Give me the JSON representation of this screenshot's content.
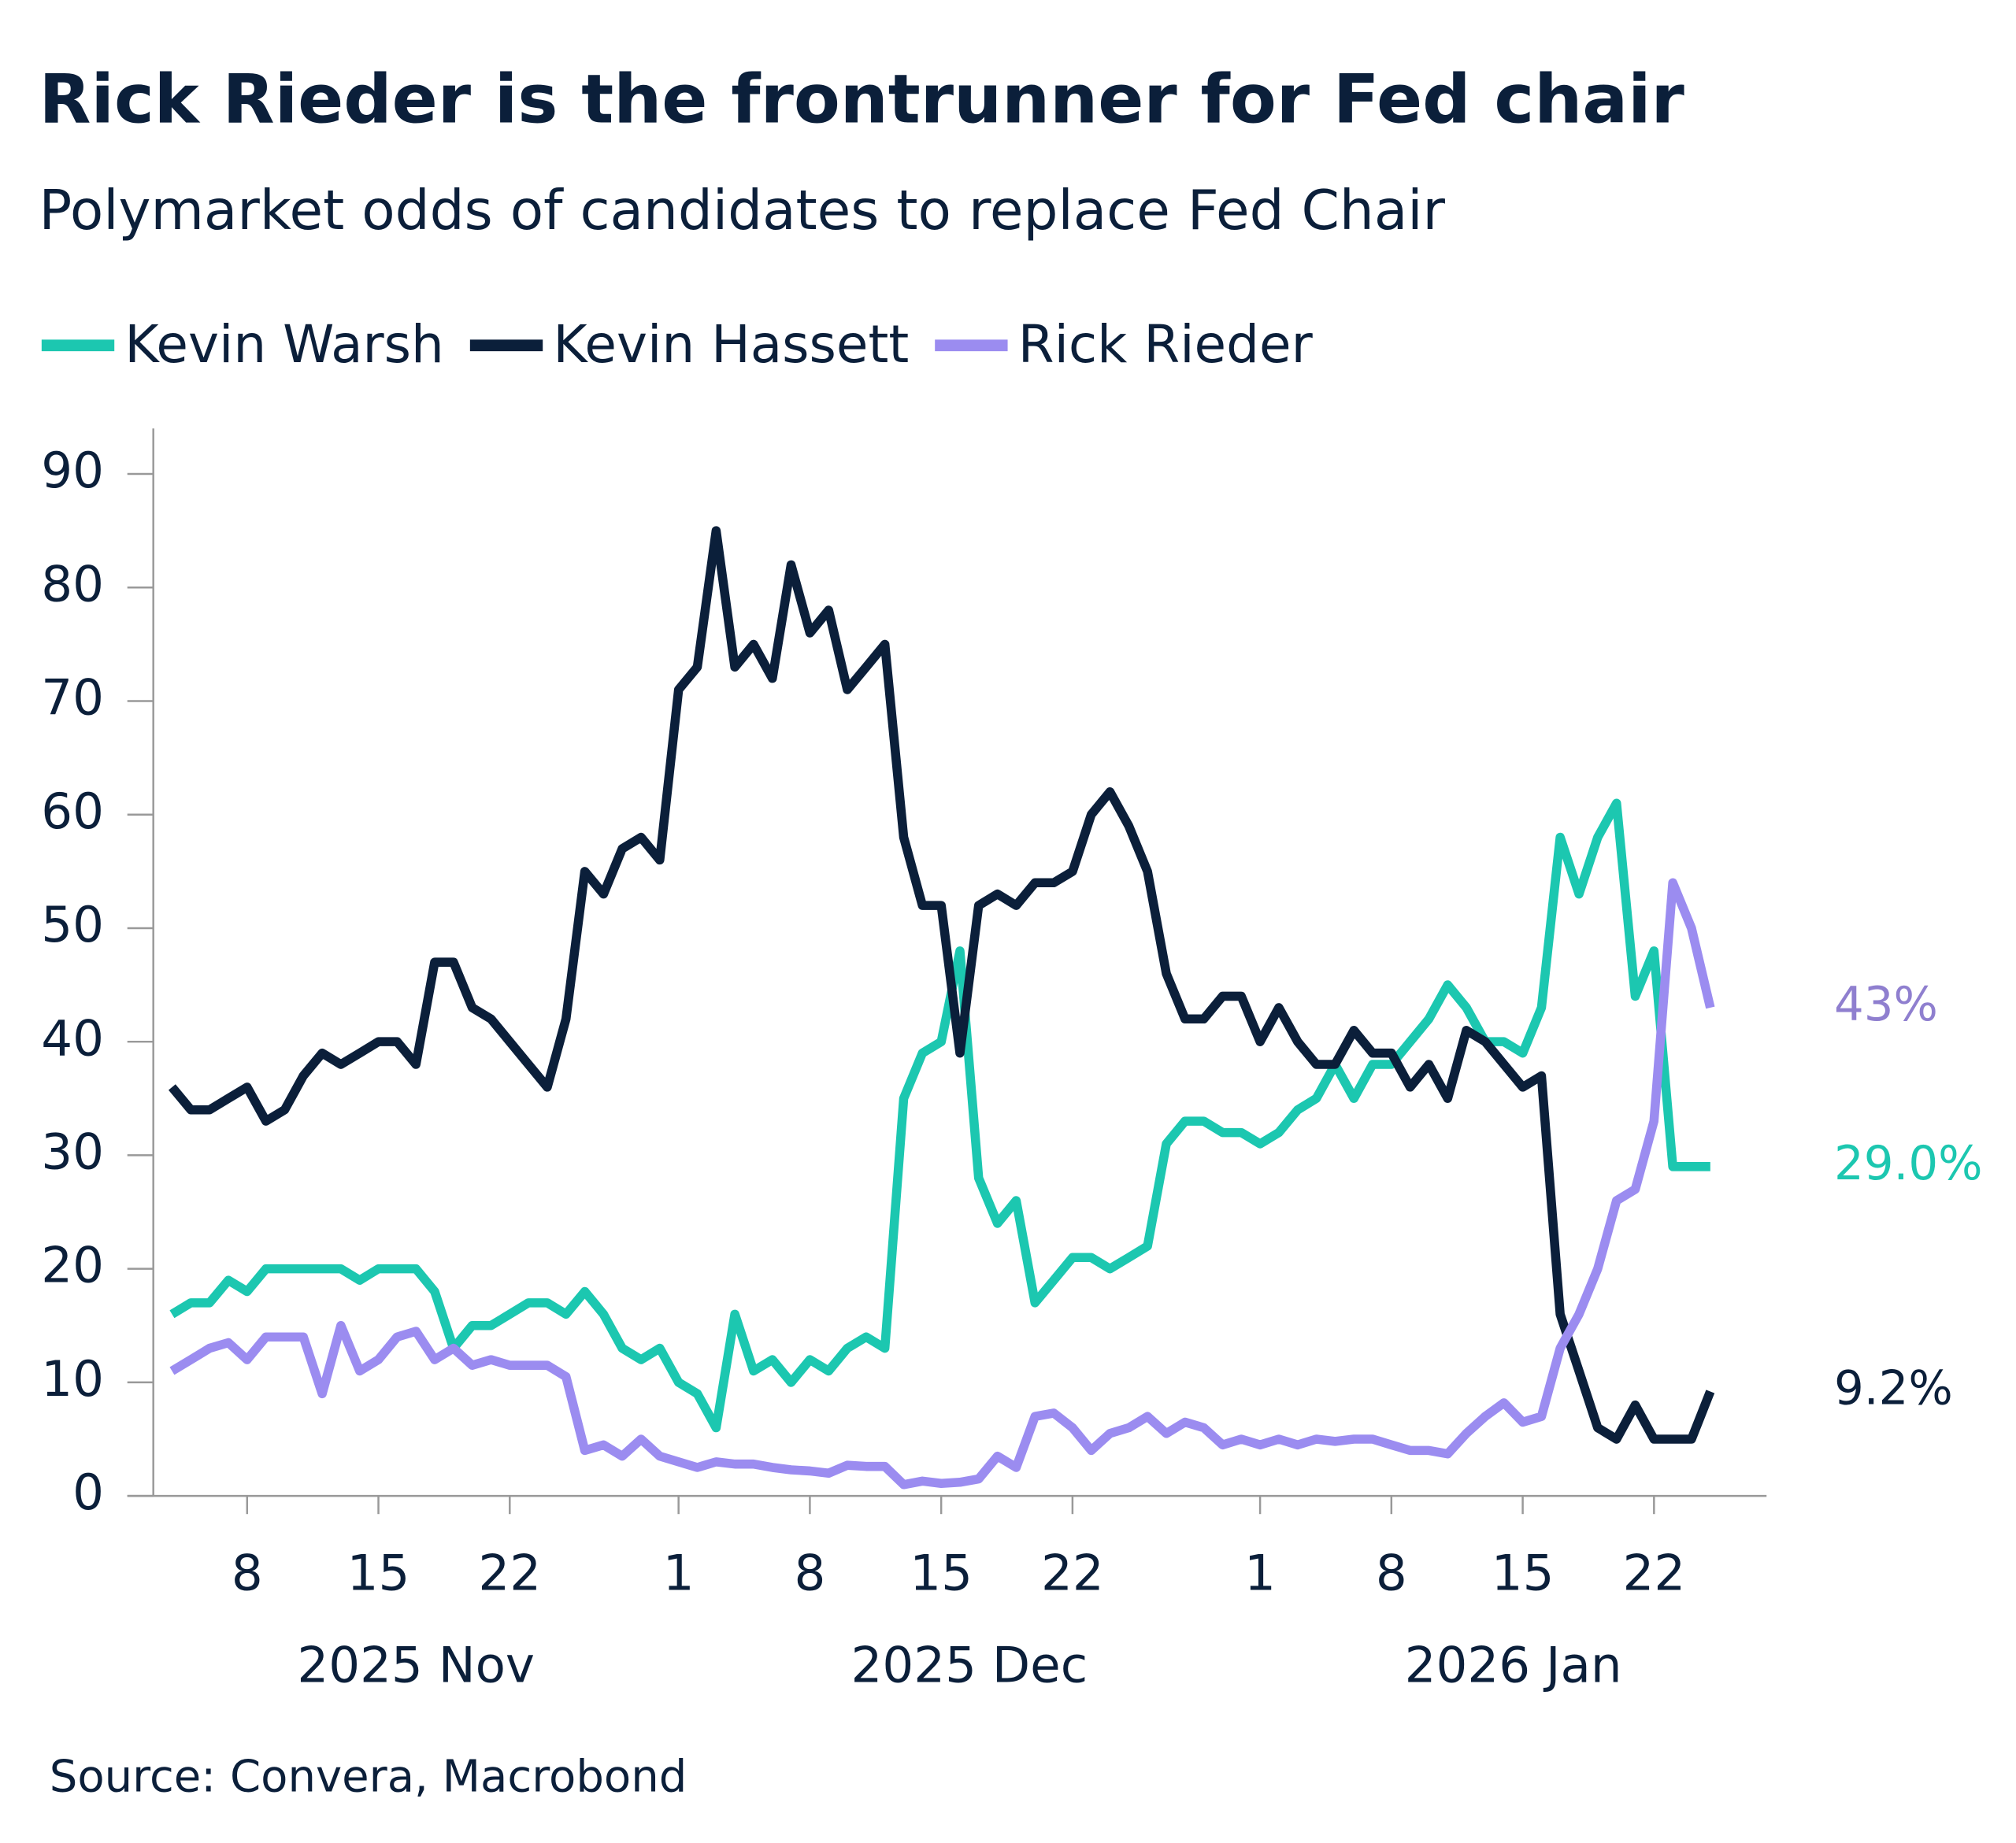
{
  "chart_data": {
    "type": "line",
    "title": "Rick Rieder is the frontrunner for Fed chair",
    "subtitle": "Polymarket odds of candidates to replace Fed Chair",
    "source": "Source: Convera, Macrobond",
    "x": [
      "2025-11-04",
      "2025-11-05",
      "2025-11-06",
      "2025-11-07",
      "2025-11-08",
      "2025-11-09",
      "2025-11-10",
      "2025-11-11",
      "2025-11-12",
      "2025-11-13",
      "2025-11-14",
      "2025-11-15",
      "2025-11-16",
      "2025-11-17",
      "2025-11-18",
      "2025-11-19",
      "2025-11-20",
      "2025-11-21",
      "2025-11-22",
      "2025-11-23",
      "2025-11-24",
      "2025-11-25",
      "2025-11-26",
      "2025-11-27",
      "2025-11-28",
      "2025-11-29",
      "2025-11-30",
      "2025-12-01",
      "2025-12-02",
      "2025-12-03",
      "2025-12-04",
      "2025-12-05",
      "2025-12-06",
      "2025-12-07",
      "2025-12-08",
      "2025-12-09",
      "2025-12-10",
      "2025-12-11",
      "2025-12-12",
      "2025-12-13",
      "2025-12-14",
      "2025-12-15",
      "2025-12-16",
      "2025-12-17",
      "2025-12-18",
      "2025-12-19",
      "2025-12-20",
      "2025-12-21",
      "2025-12-22",
      "2025-12-23",
      "2025-12-24",
      "2025-12-25",
      "2025-12-26",
      "2025-12-27",
      "2025-12-28",
      "2025-12-29",
      "2025-12-30",
      "2025-12-31",
      "2026-01-01",
      "2026-01-02",
      "2026-01-03",
      "2026-01-04",
      "2026-01-05",
      "2026-01-06",
      "2026-01-07",
      "2026-01-08",
      "2026-01-09",
      "2026-01-10",
      "2026-01-11",
      "2026-01-12",
      "2026-01-13",
      "2026-01-14",
      "2026-01-15",
      "2026-01-16",
      "2026-01-17",
      "2026-01-18",
      "2026-01-19",
      "2026-01-20",
      "2026-01-21",
      "2026-01-22",
      "2026-01-23",
      "2026-01-24",
      "2026-01-25"
    ],
    "series": [
      {
        "name": "Kevin Warsh",
        "color": "#1cc7b0",
        "last_label": "29.0%",
        "values": [
          16,
          17,
          17,
          19,
          18,
          20,
          20,
          20,
          20,
          20,
          19,
          20,
          20,
          20,
          18,
          13,
          15,
          15,
          16,
          17,
          17,
          16,
          18,
          16,
          13,
          12,
          13,
          10,
          9,
          6,
          16,
          11,
          12,
          10,
          12,
          11,
          13,
          14,
          13,
          35,
          39,
          40,
          48,
          28,
          24,
          26,
          17,
          19,
          21,
          21,
          20,
          21,
          22,
          31,
          33,
          33,
          32,
          32,
          31,
          32,
          34,
          35,
          38,
          35,
          38,
          38,
          40,
          42,
          45,
          43,
          40,
          40,
          39,
          43,
          58,
          53,
          58,
          61,
          44,
          48,
          29,
          29,
          29
        ]
      },
      {
        "name": "Kevin Hassett",
        "color": "#0b1f3a",
        "last_label": "9.2%",
        "values": [
          36,
          34,
          34,
          35,
          36,
          33,
          34,
          37,
          39,
          38,
          39,
          40,
          40,
          38,
          47,
          47,
          43,
          42,
          40,
          38,
          36,
          42,
          55,
          53,
          57,
          58,
          56,
          71,
          73,
          85,
          73,
          75,
          72,
          82,
          76,
          78,
          71,
          73,
          75,
          58,
          52,
          52,
          39,
          52,
          53,
          52,
          54,
          54,
          55,
          60,
          62,
          59,
          55,
          46,
          42,
          42,
          44,
          44,
          40,
          43,
          40,
          38,
          38,
          41,
          39,
          39,
          36,
          38,
          35,
          41,
          40,
          38,
          36,
          37,
          16,
          11,
          6,
          5,
          8,
          5,
          5,
          5,
          9.2
        ]
      },
      {
        "name": "Rick Rieder",
        "color": "#9b8cf0",
        "last_label": "43%",
        "values": [
          11,
          12,
          13,
          13.5,
          12,
          14,
          14,
          14,
          9,
          15,
          11,
          12,
          14,
          14.5,
          12,
          13,
          11.5,
          12,
          11.5,
          11.5,
          11.5,
          10.5,
          4,
          4.5,
          3.5,
          5,
          3.5,
          3,
          2.5,
          3,
          2.8,
          2.8,
          2.5,
          2.3,
          2.2,
          2,
          2.7,
          2.6,
          2.6,
          1,
          1.3,
          1.1,
          1.2,
          1.5,
          3.5,
          2.5,
          7,
          7.3,
          6,
          4,
          5.5,
          6,
          7,
          5.5,
          6.5,
          6,
          4.5,
          5,
          4.5,
          5,
          4.5,
          5,
          4.8,
          5,
          5,
          4.5,
          4,
          4,
          3.7,
          5.5,
          7,
          8.2,
          6.5,
          7,
          13,
          16,
          20,
          26,
          27,
          33,
          54,
          50,
          43
        ]
      }
    ],
    "last_label_colors": [
      "#1cc7b0",
      "#0b1f3a",
      "#8f7fcf"
    ],
    "xlim": [
      "2025-11-03",
      "2026-01-28"
    ],
    "xticks": [
      {
        "value": "2025-11-08",
        "label": "8"
      },
      {
        "value": "2025-11-15",
        "label": "15"
      },
      {
        "value": "2025-11-22",
        "label": "22"
      },
      {
        "value": "2025-12-01",
        "label": "1"
      },
      {
        "value": "2025-12-08",
        "label": "8"
      },
      {
        "value": "2025-12-15",
        "label": "15"
      },
      {
        "value": "2025-12-22",
        "label": "22"
      },
      {
        "value": "2026-01-01",
        "label": "1"
      },
      {
        "value": "2026-01-08",
        "label": "8"
      },
      {
        "value": "2026-01-15",
        "label": "15"
      },
      {
        "value": "2026-01-22",
        "label": "22"
      }
    ],
    "month_labels": [
      "2025 Nov",
      "2025 Dec",
      "2026 Jan"
    ],
    "ylim": [
      0,
      90
    ],
    "yticks": [
      0,
      10,
      20,
      30,
      40,
      50,
      60,
      70,
      80,
      90
    ],
    "grid": false,
    "legend": "top-left"
  }
}
